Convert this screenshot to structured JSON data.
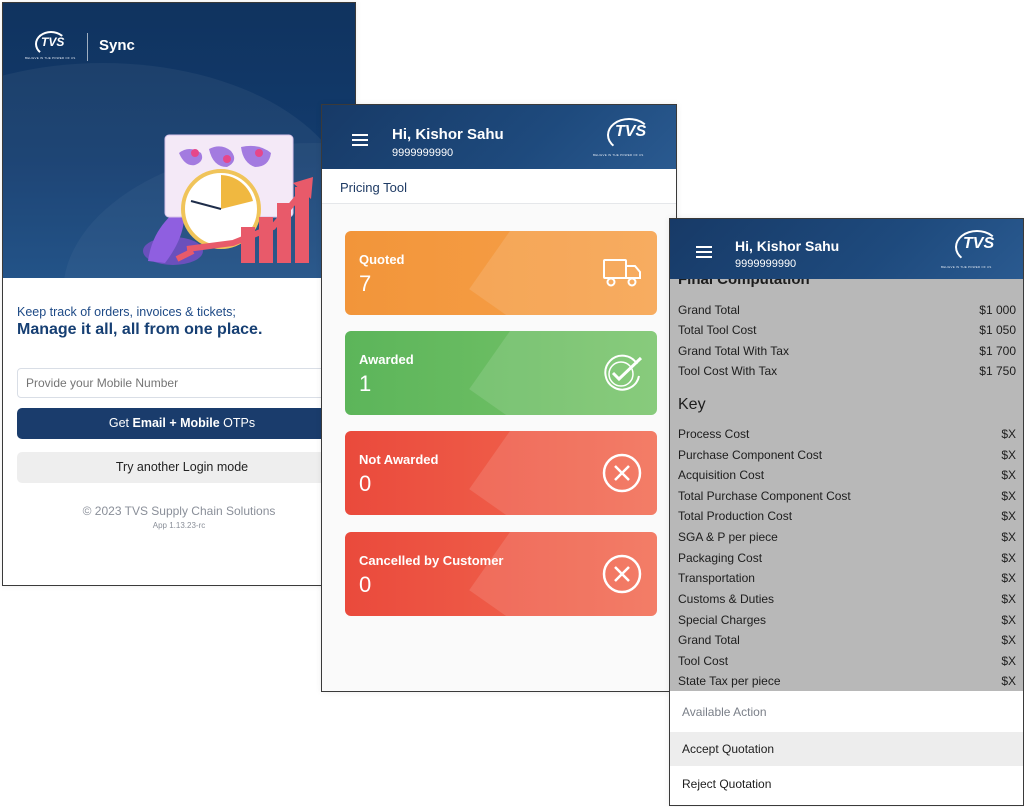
{
  "login": {
    "brand": "TVS",
    "brand_tagline": "BELIEVE IN THE POWER OF US",
    "app_name": "Sync",
    "tagline": "Keep track of orders, invoices & tickets;",
    "headline": "Manage it all, all from one place.",
    "mobile_placeholder": "Provide your Mobile Number",
    "otp_button": {
      "prefix": "Get ",
      "bold1": "Email",
      "sep": " + ",
      "bold2": "Mobile",
      "suffix": " OTPs"
    },
    "alt_login_button": "Try another Login mode",
    "copyright": "© 2023 TVS Supply Chain Solutions",
    "version": "App 1.13.23-rc"
  },
  "dashboard": {
    "greeting": "Hi, Kishor Sahu",
    "phone": "9999999990",
    "brand": "TVS",
    "brand_tagline": "BELIEVE IN THE POWER OF US",
    "section_title": "Pricing Tool",
    "cards": [
      {
        "label": "Quoted",
        "count": "7",
        "icon": "truck-icon",
        "color": "#f2953a"
      },
      {
        "label": "Awarded",
        "count": "1",
        "icon": "check-badge-icon",
        "color": "#5cb55a"
      },
      {
        "label": "Not Awarded",
        "count": "0",
        "icon": "cancel-circle-icon",
        "color": "#ea4a3c"
      },
      {
        "label": "Cancelled by Customer",
        "count": "0",
        "icon": "cancel-circle-icon",
        "color": "#ea4a3c"
      }
    ]
  },
  "quotation": {
    "greeting": "Hi, Kishor Sahu",
    "phone": "9999999990",
    "brand": "TVS",
    "brand_tagline": "BELIEVE IN THE POWER OF US",
    "partial_heading": "Final Computation",
    "computation": [
      {
        "label": "Grand Total",
        "value": "$1 000"
      },
      {
        "label": "Total Tool Cost",
        "value": "$1 050"
      },
      {
        "label": "Grand Total With Tax",
        "value": "$1 700"
      },
      {
        "label": "Tool Cost With Tax",
        "value": "$1 750"
      }
    ],
    "key_heading": "Key",
    "key_rows": [
      {
        "label": "Process Cost",
        "value": "$X"
      },
      {
        "label": "Purchase Component Cost",
        "value": "$X"
      },
      {
        "label": "Acquisition Cost",
        "value": "$X"
      },
      {
        "label": "Total Purchase Component Cost",
        "value": "$X"
      },
      {
        "label": "Total Production Cost",
        "value": "$X"
      },
      {
        "label": "SGA & P per piece",
        "value": "$X"
      },
      {
        "label": "Packaging Cost",
        "value": "$X"
      },
      {
        "label": "Transportation",
        "value": "$X"
      },
      {
        "label": "Customs & Duties",
        "value": "$X"
      },
      {
        "label": "Special Charges",
        "value": "$X"
      },
      {
        "label": "Grand Total",
        "value": "$X"
      },
      {
        "label": "Tool Cost",
        "value": "$X"
      },
      {
        "label": "State Tax per piece",
        "value": "$X"
      }
    ],
    "actions_header": "Available Action",
    "accept_label": "Accept Quotation",
    "reject_label": "Reject Quotation"
  }
}
